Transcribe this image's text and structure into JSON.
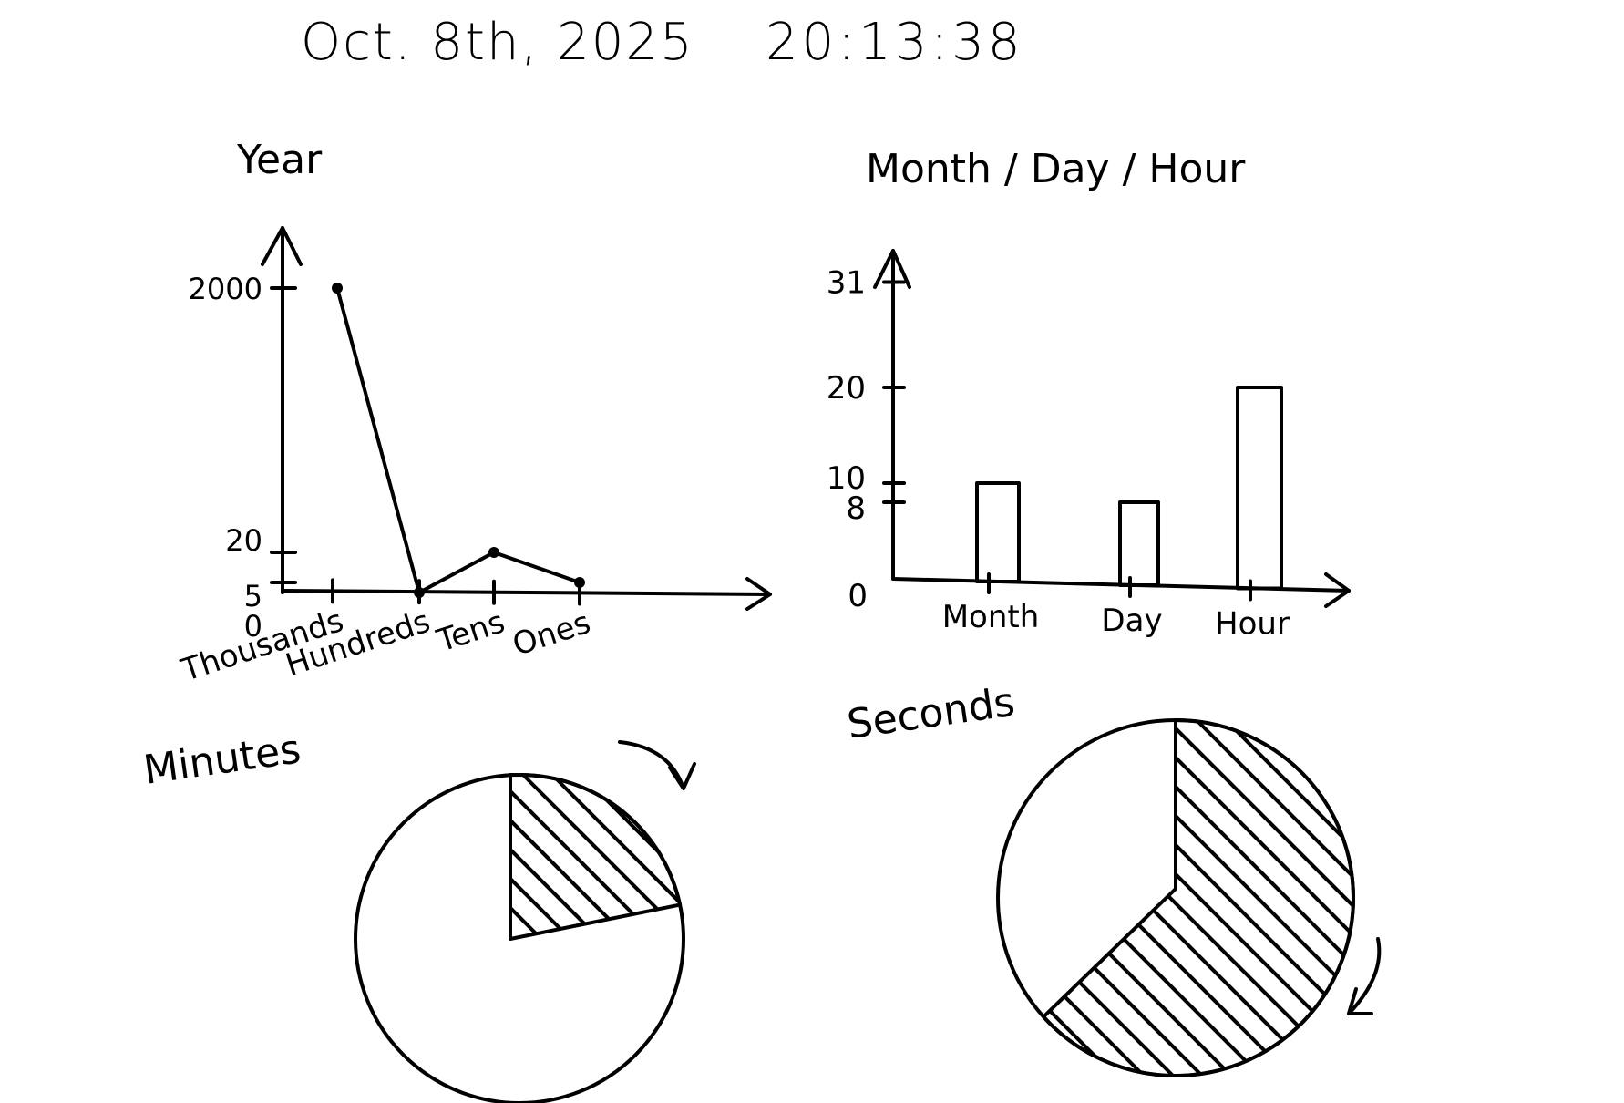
{
  "header": {
    "date": "Oct. 8th, 2025",
    "time": "20:13:38"
  },
  "chart_data": [
    {
      "id": "year",
      "type": "line",
      "title": "Year",
      "categories": [
        "Thousands",
        "Hundreds",
        "Tens",
        "Ones"
      ],
      "values": [
        2000,
        0,
        20,
        5
      ],
      "y_ticks": [
        "2000",
        "20",
        "5",
        "0"
      ],
      "y_tick_values": [
        2000,
        20,
        5,
        0
      ],
      "y_scale": "broken"
    },
    {
      "id": "month_day_hour",
      "type": "bar",
      "title": "Month / Day / Hour",
      "categories": [
        "Month",
        "Day",
        "Hour"
      ],
      "values": [
        10,
        8,
        20
      ],
      "y_ticks": [
        "31",
        "20",
        "10",
        "8",
        "0"
      ],
      "y_tick_values": [
        31,
        20,
        10,
        8,
        0
      ]
    },
    {
      "id": "minutes",
      "type": "pie",
      "title": "Minutes",
      "value": 13,
      "total": 60,
      "fill": "hatched",
      "direction": "clockwise"
    },
    {
      "id": "seconds",
      "type": "pie",
      "title": "Seconds",
      "value": 38,
      "total": 60,
      "fill": "hatched",
      "direction": "clockwise"
    }
  ]
}
